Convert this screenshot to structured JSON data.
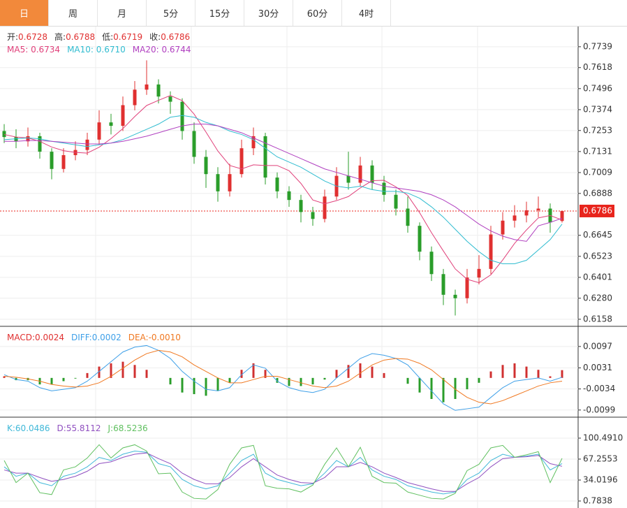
{
  "tabs": [
    "日",
    "周",
    "月",
    "5分",
    "15分",
    "30分",
    "60分",
    "4时"
  ],
  "active_tab": 0,
  "chart_data": [
    {
      "type": "candlestick",
      "up_color": "#e03030",
      "down_color": "#2a9d2a",
      "legend": [
        [
          {
            "label": "开:",
            "text": "0.6728",
            "label_color": "#333",
            "color": "#e03030"
          },
          {
            "label": "高:",
            "text": "0.6788",
            "label_color": "#333",
            "color": "#e03030"
          },
          {
            "label": "低:",
            "text": "0.6719",
            "label_color": "#333",
            "color": "#e03030"
          },
          {
            "label": "收:",
            "text": "0.6786",
            "label_color": "#333",
            "color": "#e03030"
          }
        ],
        [
          {
            "label": "MA5: ",
            "text": "0.6734",
            "color": "#e0407a"
          },
          {
            "label": "MA10: ",
            "text": "0.6710",
            "color": "#30bcd0"
          },
          {
            "label": "MA20: ",
            "text": "0.6744",
            "color": "#b040c0"
          }
        ]
      ],
      "ohlc": [
        [
          0.725,
          0.729,
          0.718,
          0.7215
        ],
        [
          0.7215,
          0.726,
          0.715,
          0.719
        ],
        [
          0.719,
          0.727,
          0.716,
          0.722
        ],
        [
          0.722,
          0.724,
          0.709,
          0.713
        ],
        [
          0.713,
          0.715,
          0.697,
          0.703
        ],
        [
          0.703,
          0.715,
          0.701,
          0.711
        ],
        [
          0.711,
          0.719,
          0.708,
          0.714
        ],
        [
          0.714,
          0.724,
          0.711,
          0.72
        ],
        [
          0.72,
          0.737,
          0.717,
          0.73
        ],
        [
          0.73,
          0.735,
          0.723,
          0.728
        ],
        [
          0.728,
          0.745,
          0.725,
          0.74
        ],
        [
          0.74,
          0.754,
          0.737,
          0.749
        ],
        [
          0.749,
          0.766,
          0.746,
          0.752
        ],
        [
          0.752,
          0.755,
          0.741,
          0.745
        ],
        [
          0.745,
          0.748,
          0.735,
          0.742
        ],
        [
          0.742,
          0.744,
          0.72,
          0.725
        ],
        [
          0.725,
          0.73,
          0.706,
          0.71
        ],
        [
          0.71,
          0.714,
          0.692,
          0.7
        ],
        [
          0.7,
          0.704,
          0.684,
          0.69
        ],
        [
          0.69,
          0.706,
          0.687,
          0.7
        ],
        [
          0.7,
          0.72,
          0.698,
          0.715
        ],
        [
          0.715,
          0.727,
          0.711,
          0.722
        ],
        [
          0.722,
          0.724,
          0.694,
          0.698
        ],
        [
          0.698,
          0.701,
          0.686,
          0.69
        ],
        [
          0.69,
          0.693,
          0.681,
          0.685
        ],
        [
          0.685,
          0.688,
          0.672,
          0.678
        ],
        [
          0.678,
          0.681,
          0.67,
          0.674
        ],
        [
          0.674,
          0.691,
          0.672,
          0.687
        ],
        [
          0.687,
          0.704,
          0.685,
          0.699
        ],
        [
          0.699,
          0.713,
          0.691,
          0.695
        ],
        [
          0.695,
          0.71,
          0.693,
          0.705
        ],
        [
          0.705,
          0.708,
          0.691,
          0.695
        ],
        [
          0.695,
          0.699,
          0.684,
          0.688
        ],
        [
          0.688,
          0.691,
          0.676,
          0.68
        ],
        [
          0.68,
          0.687,
          0.666,
          0.67
        ],
        [
          0.67,
          0.672,
          0.65,
          0.655
        ],
        [
          0.655,
          0.658,
          0.638,
          0.642
        ],
        [
          0.642,
          0.645,
          0.624,
          0.63
        ],
        [
          0.63,
          0.633,
          0.618,
          0.628
        ],
        [
          0.628,
          0.645,
          0.625,
          0.64
        ],
        [
          0.64,
          0.653,
          0.636,
          0.645
        ],
        [
          0.645,
          0.67,
          0.642,
          0.665
        ],
        [
          0.665,
          0.678,
          0.662,
          0.673
        ],
        [
          0.673,
          0.682,
          0.669,
          0.676
        ],
        [
          0.676,
          0.684,
          0.672,
          0.679
        ],
        [
          0.679,
          0.687,
          0.675,
          0.68
        ],
        [
          0.68,
          0.683,
          0.666,
          0.672
        ],
        [
          0.6728,
          0.6788,
          0.6719,
          0.6786
        ]
      ],
      "series": [
        {
          "name": "MA5",
          "color": "#e0407a",
          "values": [
            0.723,
            0.7215,
            0.721,
            0.719,
            0.7157,
            0.7136,
            0.7126,
            0.7122,
            0.7156,
            0.7206,
            0.7264,
            0.7334,
            0.7398,
            0.7428,
            0.7456,
            0.7426,
            0.7348,
            0.7244,
            0.7134,
            0.705,
            0.703,
            0.7054,
            0.705,
            0.705,
            0.702,
            0.6946,
            0.685,
            0.6828,
            0.6846,
            0.687,
            0.692,
            0.6962,
            0.6964,
            0.6926,
            0.6876,
            0.6776,
            0.666,
            0.6554,
            0.645,
            0.639,
            0.637,
            0.6416,
            0.6502,
            0.6598,
            0.6676,
            0.6746,
            0.676,
            0.6734
          ]
        },
        {
          "name": "MA10",
          "color": "#30bcd0",
          "values": [
            0.72,
            0.7205,
            0.721,
            0.7205,
            0.719,
            0.718,
            0.717,
            0.716,
            0.717,
            0.718,
            0.72,
            0.723,
            0.726,
            0.729,
            0.733,
            0.734,
            0.733,
            0.73,
            0.728,
            0.725,
            0.723,
            0.72,
            0.715,
            0.71,
            0.707,
            0.704,
            0.7,
            0.696,
            0.693,
            0.692,
            0.693,
            0.691,
            0.69,
            0.69,
            0.689,
            0.686,
            0.681,
            0.675,
            0.668,
            0.661,
            0.655,
            0.65,
            0.648,
            0.648,
            0.65,
            0.656,
            0.662,
            0.671
          ]
        },
        {
          "name": "MA20",
          "color": "#b040c0",
          "values": [
            0.719,
            0.719,
            0.7195,
            0.7195,
            0.719,
            0.7185,
            0.718,
            0.7175,
            0.7175,
            0.718,
            0.719,
            0.7205,
            0.722,
            0.724,
            0.726,
            0.728,
            0.729,
            0.729,
            0.728,
            0.726,
            0.724,
            0.721,
            0.718,
            0.715,
            0.712,
            0.709,
            0.706,
            0.703,
            0.701,
            0.699,
            0.697,
            0.695,
            0.693,
            0.692,
            0.691,
            0.69,
            0.688,
            0.685,
            0.681,
            0.676,
            0.671,
            0.667,
            0.664,
            0.662,
            0.661,
            0.67,
            0.672,
            0.6744
          ]
        }
      ],
      "last_price": 0.6786,
      "last_color": "#e8241c",
      "ylim": [
        0.6117,
        0.7856
      ],
      "yticks": [
        0.7739,
        0.7618,
        0.7496,
        0.7374,
        0.7253,
        0.7131,
        0.7009,
        0.6888,
        0.6645,
        0.6523,
        0.6401,
        {
          "value": 0.628,
          "label": "0.6280"
        },
        0.6158
      ]
    },
    {
      "type": "macd",
      "up_color": "#d03030",
      "down_color": "#2a9d2a",
      "legend": [
        [
          {
            "label": "MACD:",
            "text": "0.0024",
            "color": "#e03030"
          },
          {
            "label": "DIFF:",
            "text": "0.0002",
            "color": "#3fa0e8"
          },
          {
            "label": "DEA:",
            "text": "-0.0010",
            "color": "#f07820"
          }
        ]
      ],
      "histogram": [
        0.0005,
        -0.0007,
        -0.0007,
        -0.002,
        -0.002,
        -0.001,
        -0.0002,
        0.0015,
        0.0035,
        0.0045,
        0.005,
        0.004,
        0.0025,
        0.0,
        -0.002,
        -0.0045,
        -0.005,
        -0.0055,
        -0.004,
        -0.0015,
        0.0025,
        0.0045,
        0.0025,
        -0.0015,
        -0.0025,
        -0.0025,
        -0.002,
        -0.0005,
        0.0025,
        0.004,
        0.0045,
        0.0035,
        0.0015,
        0.0,
        -0.0018,
        -0.0045,
        -0.0065,
        -0.0075,
        -0.0065,
        -0.0035,
        -0.0015,
        0.002,
        0.004,
        0.0045,
        0.0035,
        0.0025,
        0.0005,
        0.0024
      ],
      "series": [
        {
          "name": "DIFF",
          "color": "#3fa0e8",
          "values": [
            0.001,
            -0.0005,
            -0.001,
            -0.003,
            -0.004,
            -0.0035,
            -0.003,
            -0.001,
            0.002,
            0.005,
            0.008,
            0.0095,
            0.01,
            0.0085,
            0.006,
            0.002,
            -0.001,
            -0.0035,
            -0.004,
            -0.003,
            0.001,
            0.004,
            0.003,
            -0.001,
            -0.003,
            -0.004,
            -0.0045,
            -0.0035,
            0.0,
            0.003,
            0.006,
            0.0075,
            0.007,
            0.006,
            0.004,
            0.0,
            -0.004,
            -0.008,
            -0.01,
            -0.0095,
            -0.009,
            -0.006,
            -0.003,
            -0.001,
            -0.0005,
            0.0,
            -0.001,
            0.0002
          ]
        },
        {
          "name": "DEA",
          "color": "#f07820",
          "values": [
            0.0005,
            0.0002,
            -0.0003,
            -0.001,
            -0.002,
            -0.0025,
            -0.0028,
            -0.0025,
            -0.0015,
            0.0005,
            0.003,
            0.0055,
            0.0075,
            0.0085,
            0.008,
            0.0065,
            0.004,
            0.002,
            0.0,
            -0.0015,
            -0.0015,
            -0.0005,
            0.0005,
            0.0005,
            -0.0005,
            -0.0015,
            -0.0025,
            -0.003,
            -0.0025,
            -0.001,
            0.0015,
            0.004,
            0.0055,
            0.006,
            0.0058,
            0.0045,
            0.0025,
            -0.0005,
            -0.0035,
            -0.006,
            -0.0075,
            -0.008,
            -0.007,
            -0.0055,
            -0.004,
            -0.0025,
            -0.0015,
            -0.001
          ]
        }
      ],
      "ylim": [
        -0.0121,
        0.0157
      ],
      "yticks": [
        0.0097,
        0.0031,
        -0.0034,
        -0.0099
      ]
    },
    {
      "type": "kdj",
      "legend": [
        [
          {
            "label": "K:",
            "text": "60.0486",
            "color": "#40b8d8"
          },
          {
            "label": "D:",
            "text": "55.8112",
            "color": "#9050c0"
          },
          {
            "label": "J:",
            "text": "68.5236",
            "color": "#60c060"
          }
        ]
      ],
      "series": [
        {
          "name": "K",
          "color": "#40b8d8",
          "values": [
            55,
            40,
            45,
            30,
            25,
            40,
            45,
            55,
            70,
            65,
            75,
            80,
            78,
            60,
            55,
            35,
            25,
            20,
            25,
            45,
            65,
            75,
            45,
            35,
            30,
            25,
            28,
            45,
            65,
            55,
            70,
            50,
            40,
            35,
            25,
            20,
            15,
            12,
            15,
            35,
            45,
            65,
            75,
            70,
            72,
            75,
            50,
            60.0486
          ]
        },
        {
          "name": "D",
          "color": "#9050c0",
          "values": [
            50,
            45,
            45,
            38,
            32,
            35,
            40,
            48,
            60,
            63,
            70,
            75,
            77,
            68,
            60,
            45,
            35,
            28,
            28,
            38,
            55,
            68,
            55,
            42,
            35,
            30,
            29,
            38,
            55,
            55,
            62,
            55,
            45,
            38,
            30,
            25,
            20,
            16,
            16,
            28,
            38,
            55,
            68,
            70,
            71,
            73,
            60,
            55.8112
          ]
        },
        {
          "name": "J",
          "color": "#60c060",
          "values": [
            65,
            30,
            45,
            14,
            11,
            50,
            55,
            69,
            90,
            69,
            85,
            90,
            80,
            44,
            45,
            15,
            5,
            4,
            19,
            59,
            85,
            89,
            25,
            21,
            20,
            15,
            26,
            59,
            85,
            55,
            86,
            40,
            30,
            29,
            15,
            10,
            5,
            4,
            13,
            49,
            59,
            85,
            89,
            70,
            74,
            79,
            30,
            68.5236
          ]
        }
      ],
      "ylim": [
        -10.3,
        132.6
      ],
      "yticks": [
        {
          "value": 100.491,
          "label": "100.4910"
        },
        67.2553,
        34.0196,
        0.7838
      ]
    }
  ]
}
